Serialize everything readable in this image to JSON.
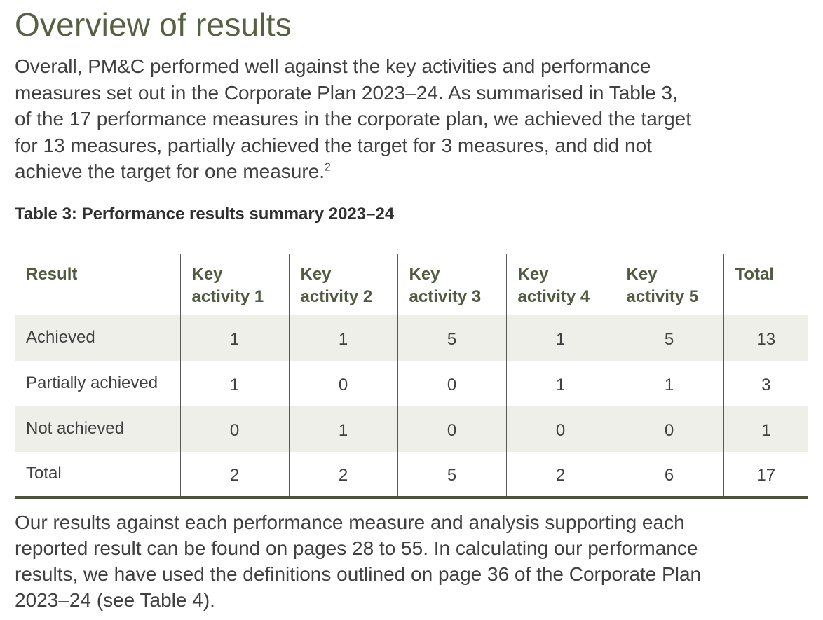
{
  "heading": "Overview of results",
  "intro": {
    "lines": [
      "Overall, PM&C performed well against the key activities and performance",
      "measures set out in the Corporate Plan 2023–24. As summarised in Table 3,",
      "of the 17 performance measures in the corporate plan, we achieved the target",
      "for 13 measures, partially achieved the target for 3 measures, and did not",
      "achieve the target for one measure."
    ],
    "footnote": "2"
  },
  "table": {
    "caption": "Table 3: Performance results summary 2023–24",
    "headers": [
      [
        "Result",
        ""
      ],
      [
        "Key",
        "activity 1"
      ],
      [
        "Key",
        "activity 2"
      ],
      [
        "Key",
        "activity 3"
      ],
      [
        "Key",
        "activity 4"
      ],
      [
        "Key",
        "activity 5"
      ],
      [
        "Total",
        ""
      ]
    ],
    "rows": [
      {
        "label": "Achieved",
        "values": [
          "1",
          "1",
          "5",
          "1",
          "5",
          "13"
        ]
      },
      {
        "label": "Partially achieved",
        "values": [
          "1",
          "0",
          "0",
          "1",
          "1",
          "3"
        ]
      },
      {
        "label": "Not achieved",
        "values": [
          "0",
          "1",
          "0",
          "0",
          "0",
          "1"
        ]
      },
      {
        "label": "Total",
        "values": [
          "2",
          "2",
          "5",
          "2",
          "6",
          "17"
        ]
      }
    ]
  },
  "outro": {
    "lines": [
      "Our results against each performance measure and analysis supporting each",
      "reported result can be found on pages 28 to 55. In calculating our performance",
      "results, we have used the definitions outlined on page 36 of the Corporate Plan",
      "2023–24 (see Table 4)."
    ]
  },
  "colors": {
    "heading": "#566042",
    "row_shade": "#efefea",
    "table_rule": "#4d5638"
  }
}
